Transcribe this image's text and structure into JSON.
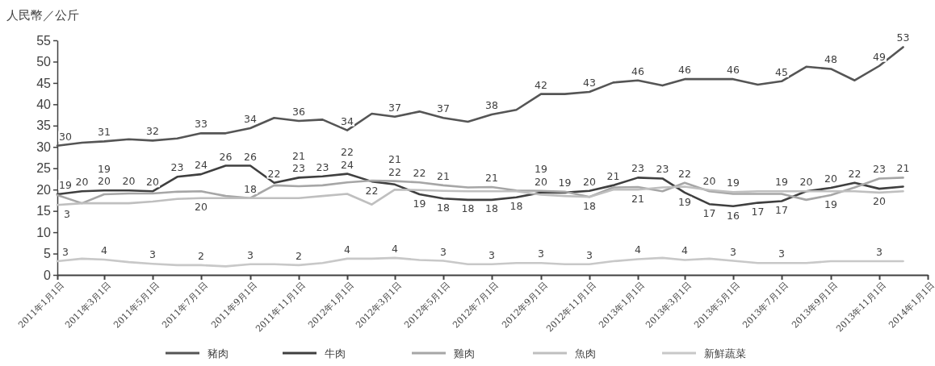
{
  "chart_data": {
    "type": "line",
    "ylabel": "人民幣／公斤",
    "x": [
      "2011-01",
      "2011-02",
      "2011-03",
      "2011-04",
      "2011-05",
      "2011-06",
      "2011-07",
      "2011-08",
      "2011-09",
      "2011-10",
      "2011-11",
      "2011-12",
      "2012-01",
      "2012-02",
      "2012-03",
      "2012-04",
      "2012-05",
      "2012-06",
      "2012-07",
      "2012-08",
      "2012-09",
      "2012-10",
      "2012-11",
      "2012-12",
      "2013-01",
      "2013-02",
      "2013-03",
      "2013-04",
      "2013-05",
      "2013-06",
      "2013-07",
      "2013-08",
      "2013-09",
      "2013-10",
      "2013-11",
      "2013-12"
    ],
    "xlim": [
      "2011-01-01",
      "2014-01-01"
    ],
    "xticks": [
      {
        "value": "2011-01-01",
        "label": "2011年1月1日"
      },
      {
        "value": "2011-03-01",
        "label": "2011年3月1日"
      },
      {
        "value": "2011-05-01",
        "label": "2011年5月1日"
      },
      {
        "value": "2011-07-01",
        "label": "2011年7月1日"
      },
      {
        "value": "2011-09-01",
        "label": "2011年9月1日"
      },
      {
        "value": "2011-11-01",
        "label": "2011年11月1日"
      },
      {
        "value": "2012-01-01",
        "label": "2012年1月1日"
      },
      {
        "value": "2012-03-01",
        "label": "2012年3月1日"
      },
      {
        "value": "2012-05-01",
        "label": "2012年5月1日"
      },
      {
        "value": "2012-07-01",
        "label": "2012年7月1日"
      },
      {
        "value": "2012-09-01",
        "label": "2012年9月1日"
      },
      {
        "value": "2012-11-01",
        "label": "2012年11月1日"
      },
      {
        "value": "2013-01-01",
        "label": "2013年1月1日"
      },
      {
        "value": "2013-03-01",
        "label": "2013年3月1日"
      },
      {
        "value": "2013-05-01",
        "label": "2013年5月1日"
      },
      {
        "value": "2013-07-01",
        "label": "2013年7月1日"
      },
      {
        "value": "2013-09-01",
        "label": "2013年9月1日"
      },
      {
        "value": "2013-11-01",
        "label": "2013年11月1日"
      },
      {
        "value": "2014-01-01",
        "label": "2014年1月1日"
      }
    ],
    "ylim": [
      0,
      55
    ],
    "yticks": [
      0,
      5,
      10,
      15,
      20,
      25,
      30,
      35,
      40,
      45,
      50,
      55
    ],
    "legend": "bottom",
    "grid": false,
    "marker": "none",
    "line_style": "solid",
    "series": [
      {
        "name": "豬肉",
        "color": "#555555",
        "values": [
          30.3,
          31,
          31.3,
          31.8,
          31.5,
          32,
          33.2,
          33.2,
          34.4,
          36.8,
          36.1,
          36.4,
          33.9,
          37.8,
          37.1,
          38.3,
          36.8,
          35.9,
          37.6,
          38.7,
          42.4,
          42.4,
          42.9,
          45.1,
          45.6,
          44.4,
          45.9,
          45.9,
          45.9,
          44.6,
          45.4,
          48.8,
          48.3,
          45.6,
          49,
          53.4
        ],
        "value_labels": [
          "30",
          null,
          "31",
          null,
          "32",
          null,
          "33",
          null,
          "34",
          null,
          "36",
          null,
          "34",
          null,
          "37",
          null,
          "37",
          null,
          "38",
          null,
          "42",
          null,
          "43",
          null,
          "46",
          null,
          "46",
          null,
          "46",
          null,
          "45",
          null,
          "48",
          null,
          "49",
          "53"
        ]
      },
      {
        "name": "牛肉",
        "color": "#3f3f3f",
        "values": [
          18.9,
          19.6,
          19.8,
          19.8,
          19.6,
          23,
          23.6,
          25.6,
          25.6,
          21.6,
          22.8,
          23.1,
          23.7,
          21.9,
          21.2,
          18.9,
          17.9,
          17.6,
          17.6,
          18.2,
          19.3,
          19.3,
          19.7,
          21,
          22.8,
          22.6,
          19.3,
          16.6,
          16.1,
          16.9,
          17.3,
          19.6,
          20.4,
          21.6,
          20.2,
          20.7
        ],
        "value_labels": [
          "19",
          "20",
          "20",
          "20",
          "20",
          "23",
          "24",
          "26",
          "26",
          "22",
          "23",
          "23",
          "24",
          "22",
          "21",
          "19",
          "18",
          "18",
          "18",
          "18",
          "19",
          "19",
          "20",
          "21",
          "23",
          "23",
          "19",
          "17",
          "16",
          "17",
          "17",
          "20",
          "20",
          "22",
          "20",
          "21"
        ]
      },
      {
        "name": "雞肉",
        "color": "#a6a6a6",
        "values": [
          18.7,
          16.8,
          18.9,
          19.1,
          19.1,
          19.5,
          19.6,
          18.5,
          18,
          21,
          20.8,
          21,
          21.7,
          22.1,
          22,
          21.7,
          21,
          20.5,
          20.6,
          19.8,
          19.7,
          19.5,
          18.3,
          20.5,
          20.6,
          19.6,
          21.6,
          19.6,
          19,
          19,
          19,
          17.6,
          18.7,
          20.5,
          22.6,
          22.8
        ],
        "value_labels": [
          null,
          null,
          "19",
          null,
          null,
          null,
          "20",
          null,
          "18",
          null,
          "21",
          null,
          "22",
          null,
          "22",
          "22",
          "21",
          null,
          "21",
          null,
          "20",
          null,
          null,
          null,
          "21",
          null,
          "22",
          "20",
          null,
          null,
          "19",
          null,
          "19",
          null,
          "23",
          null
        ]
      },
      {
        "name": "魚肉",
        "color": "#bfbfbf",
        "values": [
          16.4,
          16.8,
          16.8,
          16.8,
          17.2,
          17.8,
          18,
          18,
          18,
          18,
          18,
          18.5,
          19,
          16.5,
          20,
          19.9,
          19.7,
          19.6,
          19.6,
          19.6,
          18.8,
          18.5,
          18.3,
          20,
          20,
          20.5,
          20.7,
          19.9,
          19.4,
          19.6,
          19.6,
          19.6,
          19.6,
          19.6,
          19.3,
          19.6
        ],
        "value_labels": [
          null,
          null,
          null,
          null,
          null,
          null,
          null,
          null,
          null,
          null,
          null,
          null,
          null,
          null,
          null,
          null,
          null,
          null,
          null,
          null,
          null,
          null,
          "18",
          null,
          null,
          null,
          null,
          null,
          "19",
          null,
          null,
          null,
          null,
          null,
          null,
          null
        ]
      },
      {
        "name": "新鮮蔬菜",
        "color": "#c8c8c8",
        "values": [
          3.2,
          3.8,
          3.6,
          3,
          2.6,
          2.3,
          2.3,
          2,
          2.5,
          2.5,
          2.3,
          2.8,
          3.8,
          3.8,
          4,
          3.5,
          3.3,
          2.5,
          2.5,
          2.8,
          2.8,
          2.5,
          2.5,
          3.2,
          3.7,
          4,
          3.5,
          3.8,
          3.3,
          2.8,
          2.8,
          2.8,
          3.2,
          3.2,
          3.2,
          3.2
        ],
        "value_labels": [
          "3",
          null,
          "4",
          null,
          "3",
          null,
          "2",
          null,
          "3",
          null,
          "2",
          null,
          "4",
          null,
          "4",
          null,
          "3",
          null,
          "3",
          null,
          "3",
          null,
          "3",
          null,
          "4",
          null,
          "4",
          null,
          "3",
          null,
          "3",
          null,
          null,
          null,
          "3",
          null
        ]
      }
    ],
    "annotations": [
      "3"
    ]
  }
}
